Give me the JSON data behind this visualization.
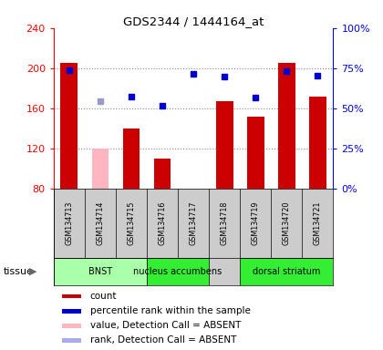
{
  "title": "GDS2344 / 1444164_at",
  "samples": [
    "GSM134713",
    "GSM134714",
    "GSM134715",
    "GSM134716",
    "GSM134717",
    "GSM134718",
    "GSM134719",
    "GSM134720",
    "GSM134721"
  ],
  "bar_values": [
    205,
    120,
    140,
    110,
    null,
    167,
    152,
    205,
    172
  ],
  "bar_colors": [
    "#cc0000",
    "#ffb6c1",
    "#cc0000",
    "#cc0000",
    "#cc0000",
    "#cc0000",
    "#cc0000",
    "#cc0000",
    "#cc0000"
  ],
  "dot_values": [
    198,
    167,
    172,
    163,
    194,
    192,
    171,
    197,
    193
  ],
  "dot_colors": [
    "#0000cc",
    "#9999cc",
    "#0000cc",
    "#0000cc",
    "#0000cc",
    "#0000cc",
    "#0000cc",
    "#0000cc",
    "#0000cc"
  ],
  "ymin": 80,
  "ymax": 240,
  "yticks": [
    80,
    120,
    160,
    200,
    240
  ],
  "tissues": [
    {
      "label": "BNST",
      "start": 0,
      "end": 2,
      "color": "#aaffaa"
    },
    {
      "label": "nucleus accumbens",
      "start": 3,
      "end": 4,
      "color": "#33ee33"
    },
    {
      "label": "dorsal striatum",
      "start": 6,
      "end": 8,
      "color": "#33ee33"
    }
  ],
  "legend_items": [
    {
      "color": "#cc0000",
      "label": "count"
    },
    {
      "color": "#0000cc",
      "label": "percentile rank within the sample"
    },
    {
      "color": "#ffb6c1",
      "label": "value, Detection Call = ABSENT"
    },
    {
      "color": "#aaaaee",
      "label": "rank, Detection Call = ABSENT"
    }
  ],
  "bg_color": "#ffffff"
}
